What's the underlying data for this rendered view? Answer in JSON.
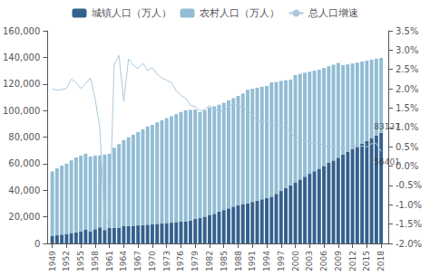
{
  "chart_data": {
    "type": "bar",
    "stacked": true,
    "grid": false,
    "legend": "top",
    "x": [
      1949,
      1950,
      1951,
      1952,
      1953,
      1954,
      1955,
      1956,
      1957,
      1958,
      1959,
      1960,
      1961,
      1962,
      1963,
      1964,
      1965,
      1966,
      1967,
      1968,
      1969,
      1970,
      1971,
      1972,
      1973,
      1974,
      1975,
      1976,
      1977,
      1978,
      1979,
      1980,
      1981,
      1982,
      1983,
      1984,
      1985,
      1986,
      1987,
      1988,
      1989,
      1990,
      1991,
      1992,
      1993,
      1994,
      1995,
      1996,
      1997,
      1998,
      1999,
      2000,
      2001,
      2002,
      2003,
      2004,
      2005,
      2006,
      2007,
      2008,
      2009,
      2010,
      2011,
      2012,
      2013,
      2014,
      2015,
      2016,
      2017,
      2018
    ],
    "xlim": [
      1948,
      2019.5
    ],
    "xticks": [
      1949,
      1952,
      1955,
      1958,
      1961,
      1964,
      1967,
      1970,
      1973,
      1976,
      1979,
      1982,
      1985,
      1988,
      1991,
      1994,
      1997,
      2000,
      2003,
      2006,
      2009,
      2012,
      2015,
      2018
    ],
    "ylim": [
      0,
      160000
    ],
    "yticks": [
      0,
      {
        "value": 20000,
        "label": "20,000"
      },
      {
        "value": 40000,
        "label": "40,000"
      },
      {
        "value": 60000,
        "label": "60,000"
      },
      {
        "value": 80000,
        "label": "80,000"
      },
      {
        "value": 100000,
        "label": "100,000"
      },
      {
        "value": 120000,
        "label": "120,000"
      },
      {
        "value": 140000,
        "label": "140,000"
      },
      {
        "value": 160000,
        "label": "160,000"
      }
    ],
    "y2lim": [
      -0.02,
      0.035
    ],
    "y2ticks": [
      {
        "value": -0.02,
        "label": "-2.0%"
      },
      {
        "value": -0.015,
        "label": "-1.5%"
      },
      {
        "value": -0.01,
        "label": "-1.0%"
      },
      {
        "value": -0.005,
        "label": "-0.5%"
      },
      {
        "value": 0.0,
        "label": "0.0%"
      },
      {
        "value": 0.005,
        "label": "0.5%"
      },
      {
        "value": 0.01,
        "label": "1.0%"
      },
      {
        "value": 0.015,
        "label": "1.5%"
      },
      {
        "value": 0.02,
        "label": "2.0%"
      },
      {
        "value": 0.025,
        "label": "2.5%"
      },
      {
        "value": 0.03,
        "label": "3.0%"
      },
      {
        "value": 0.035,
        "label": "3.5%"
      }
    ],
    "series": [
      {
        "name": "城镇人口（万人）",
        "type": "bar",
        "color": "#34618e",
        "values": [
          5765,
          6169,
          6632,
          7163,
          7826,
          8249,
          9195,
          10228,
          9205,
          10721,
          12073,
          10073,
          11659,
          11646,
          11646,
          12950,
          13045,
          13313,
          13548,
          13838,
          14124,
          14424,
          14711,
          14935,
          15345,
          15595,
          16030,
          16341,
          16669,
          17245,
          18495,
          19140,
          20171,
          21480,
          22274,
          24017,
          25094,
          26366,
          27674,
          28661,
          29651,
          30195,
          31203,
          32175,
          33173,
          34169,
          35174,
          37304,
          39449,
          41608,
          43748,
          45906,
          48064,
          50212,
          52376,
          54283,
          56212,
          58288,
          60633,
          62403,
          64512,
          66978,
          69079,
          71182,
          73111,
          74916,
          77116,
          79298,
          81347,
          83137
        ]
      },
      {
        "name": "农村人口（万人）",
        "type": "bar",
        "color": "#92bdd4",
        "values": [
          48402,
          50294,
          51867,
          52849,
          54630,
          56440,
          56901,
          57174,
          56170,
          55383,
          54131,
          56779,
          55837,
          60274,
          63031,
          64851,
          66756,
          68509,
          70253,
          72072,
          73837,
          74762,
          76394,
          77703,
          78863,
          80082,
          81143,
          82538,
          83619,
          83213,
          82270,
          79565,
          79901,
          80734,
          80850,
          80340,
          80757,
          81347,
          81626,
          82365,
          83138,
          85347,
          85181,
          84996,
          84683,
          84285,
          85947,
          84177,
          82786,
          81186,
          79483,
          80837,
          79563,
          78241,
          76851,
          75705,
          74544,
          73742,
          72750,
          72135,
          71288,
          67113,
          65656,
          64222,
          62961,
          61866,
          60346,
          58973,
          57661,
          56401
        ]
      },
      {
        "name": "总人口增速",
        "type": "line",
        "axis": "y2",
        "color": "#aac9dd",
        "values": [
          0.02,
          0.0196,
          0.0198,
          0.0201,
          0.0225,
          0.0216,
          0.0201,
          0.0213,
          0.0228,
          0.0174,
          0.0096,
          -0.0155,
          -0.0138,
          0.0263,
          0.0286,
          0.0168,
          0.0277,
          0.0261,
          0.0252,
          0.0266,
          0.0247,
          0.0255,
          0.0238,
          0.0228,
          0.0222,
          0.0216,
          0.0194,
          0.0183,
          0.0175,
          0.0157,
          0.0154,
          0.0142,
          0.0146,
          0.0156,
          0.0148,
          0.0141,
          0.0144,
          0.0153,
          0.0162,
          0.0157,
          0.015,
          0.0143,
          0.0132,
          0.0118,
          0.0117,
          0.0113,
          0.0107,
          0.0105,
          0.0104,
          0.0095,
          0.0088,
          0.0074,
          0.0072,
          0.0065,
          0.006,
          0.0059,
          0.0059,
          0.0053,
          0.0051,
          0.0051,
          0.0047,
          0.0047,
          0.0048,
          0.0057,
          0.0049,
          0.0052,
          0.005,
          0.0058,
          0.0059,
          0.0038
        ]
      }
    ],
    "annotations": [
      {
        "text": "56401",
        "x": 2016.5,
        "y": 58000,
        "color": "#333333"
      },
      {
        "text": "83137",
        "x": 2016.5,
        "y": 85000,
        "color": "#333333"
      }
    ]
  }
}
